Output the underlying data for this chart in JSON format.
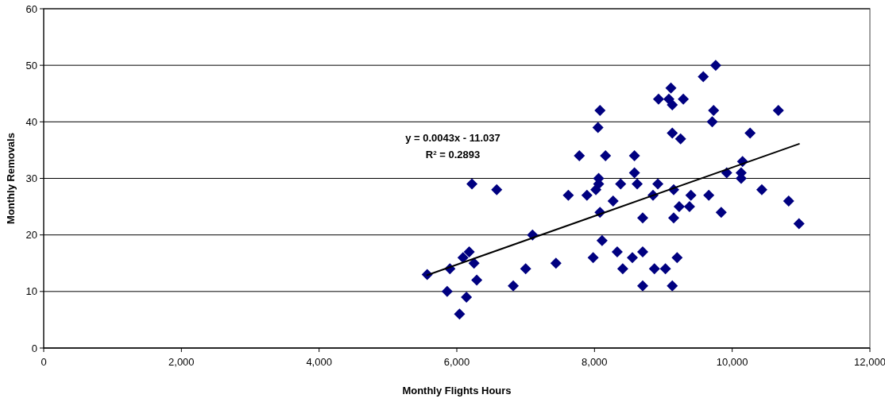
{
  "chart_data": {
    "type": "scatter",
    "xlabel": "Monthly Flights Hours",
    "ylabel": "Monthly Removals",
    "xlim": [
      0,
      12000
    ],
    "xticks": [
      {
        "value": 0,
        "label": "0"
      },
      {
        "value": 2000,
        "label": "2,000"
      },
      {
        "value": 4000,
        "label": "4,000"
      },
      {
        "value": 6000,
        "label": "6,000"
      },
      {
        "value": 8000,
        "label": "8,000"
      },
      {
        "value": 10000,
        "label": "10,000"
      },
      {
        "value": 12000,
        "label": "12,000"
      }
    ],
    "ylim": [
      0,
      60
    ],
    "yticks": [
      0,
      10,
      20,
      30,
      40,
      50,
      60
    ],
    "grid": "y",
    "annotations": [
      "y = 0.0043x - 11.037",
      "R$^{2}$ = 0.2893"
    ],
    "series": [
      {
        "marker": "diamond",
        "color": "#000080",
        "x": [
          5570,
          5900,
          5860,
          6040,
          6140,
          6090,
          6180,
          6250,
          6290,
          6820,
          7000,
          7100,
          7440,
          7980,
          8110,
          8080,
          8330,
          8410,
          8550,
          8700,
          8700,
          8700,
          8850,
          9150,
          9230,
          9380,
          9840,
          9660,
          8870,
          9030,
          9200,
          9130,
          9760,
          9580,
          9110,
          8930,
          9080,
          9130,
          9290,
          8080,
          9730,
          8050,
          9710,
          9130,
          9250,
          7780,
          8160,
          8580,
          8580,
          8060,
          8060,
          8020,
          8380,
          8620,
          8920,
          7620,
          7890,
          8270,
          9150,
          9400,
          9920,
          10150,
          10130,
          10130,
          10260,
          10670,
          10430,
          10820,
          10970,
          6220,
          6580
        ],
        "values": [
          13,
          14,
          10,
          6,
          9,
          16,
          17,
          15,
          12,
          11,
          14,
          20,
          15,
          16,
          19,
          24,
          17,
          14,
          16,
          17,
          11,
          23,
          27,
          23,
          25,
          25,
          24,
          27,
          14,
          14,
          16,
          11,
          50,
          48,
          46,
          44,
          44,
          43,
          44,
          42,
          42,
          39,
          40,
          38,
          37,
          34,
          34,
          34,
          31,
          30,
          29,
          28,
          29,
          29,
          29,
          27,
          27,
          26,
          28,
          27,
          31,
          33,
          31,
          30,
          38,
          42,
          28,
          26,
          22,
          29,
          28
        ]
      },
      {
        "type": "line",
        "color": "#000000",
        "x": [
          5570,
          10970
        ],
        "values": [
          12.9,
          36.1
        ]
      }
    ]
  }
}
